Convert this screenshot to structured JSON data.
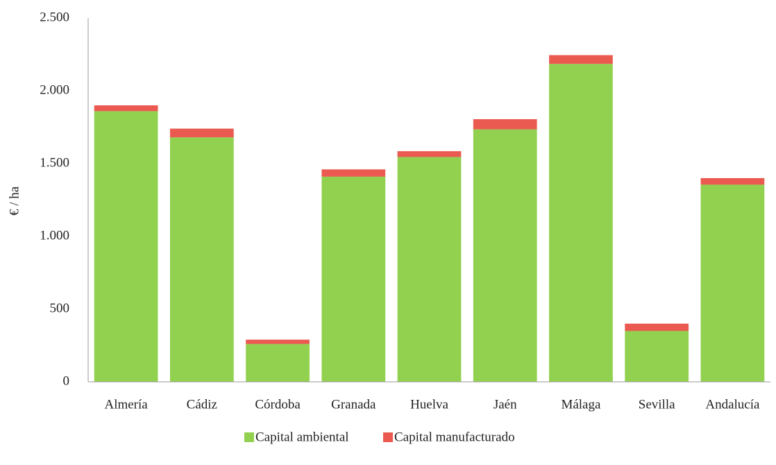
{
  "chart_data": {
    "type": "stacked_bar",
    "y_label": "€ / ha",
    "categories": [
      "Almería",
      "Cádiz",
      "Córdoba",
      "Granada",
      "Huelva",
      "Jaén",
      "Málaga",
      "Sevilla",
      "Andalucía"
    ],
    "series": [
      {
        "name": "Capital ambiental",
        "color": "#92d050",
        "values": [
          1860,
          1680,
          260,
          1410,
          1545,
          1735,
          2185,
          350,
          1355
        ]
      },
      {
        "name": "Capital manufacturado",
        "color": "#eb5a50",
        "values": [
          40,
          60,
          30,
          50,
          40,
          70,
          60,
          50,
          45
        ]
      }
    ],
    "ylim": [
      0,
      2500
    ],
    "yticks": [
      0,
      500,
      {
        "value": 1000,
        "label": "1.000"
      },
      {
        "value": 1500,
        "label": "1.500"
      },
      {
        "value": 2000,
        "label": "2.000"
      },
      {
        "value": 2500,
        "label": "2.500"
      }
    ],
    "grid": false,
    "legend": "bottom"
  }
}
